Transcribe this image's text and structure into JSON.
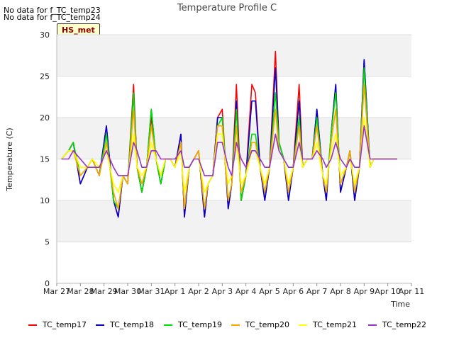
{
  "nodata_lines": [
    "No data for f_TC_temp23",
    "No data for f_TC_temp24"
  ],
  "badge": "HS_met",
  "chart_data": {
    "type": "line",
    "title": "Temperature Profile C",
    "xlabel": "Time",
    "ylabel": "Temperature (C)",
    "ylim": [
      0,
      30
    ],
    "yticks": [
      0,
      5,
      10,
      15,
      20,
      25,
      30
    ],
    "xlim": [
      0,
      15
    ],
    "xticks": [
      0,
      1,
      2,
      3,
      4,
      5,
      6,
      7,
      8,
      9,
      10,
      11,
      12,
      13,
      14,
      15
    ],
    "xtick_labels": [
      "Mar 27",
      "Mar 28",
      "Mar 29",
      "Mar 30",
      "Mar 31",
      "Apr 1",
      "Apr 2",
      "Apr 3",
      "Apr 4",
      "Apr 5",
      "Apr 6",
      "Apr 7",
      "Apr 8",
      "Apr 9",
      "Apr 10",
      "Apr 11"
    ],
    "grid": "horizontal bands",
    "legend_position": "bottom",
    "x": [
      0.2,
      0.5,
      0.7,
      1.0,
      1.3,
      1.5,
      1.8,
      2.1,
      2.4,
      2.6,
      2.8,
      3.0,
      3.25,
      3.4,
      3.6,
      3.8,
      4.0,
      4.2,
      4.4,
      4.6,
      4.8,
      5.0,
      5.25,
      5.4,
      5.6,
      5.8,
      6.0,
      6.25,
      6.4,
      6.6,
      6.8,
      7.0,
      7.25,
      7.4,
      7.6,
      7.8,
      8.0,
      8.25,
      8.4,
      8.6,
      8.8,
      9.0,
      9.25,
      9.4,
      9.6,
      9.8,
      10.0,
      10.25,
      10.4,
      10.6,
      10.8,
      11.0,
      11.25,
      11.4,
      11.6,
      11.8,
      12.0,
      12.25,
      12.4,
      12.6,
      12.8,
      13.0,
      13.25,
      13.4,
      13.6,
      13.8,
      14.0,
      14.25,
      14.4
    ],
    "series": [
      {
        "name": "TC_temp17",
        "color": "#ff0000",
        "values": [
          15,
          16,
          17,
          12,
          14,
          15,
          13,
          19,
          10,
          8,
          13,
          12,
          24,
          14,
          11,
          14,
          20,
          15,
          12,
          15,
          15,
          14,
          18,
          8,
          14,
          15,
          16,
          8,
          12,
          13,
          20,
          21,
          9,
          12,
          24,
          10,
          13,
          24,
          23,
          14,
          10,
          14,
          28,
          17,
          15,
          10,
          14,
          24,
          14,
          15,
          15,
          21,
          13,
          10,
          18,
          24,
          11,
          14,
          16,
          10,
          14,
          27,
          14,
          15,
          15,
          15,
          15,
          15,
          15
        ]
      },
      {
        "name": "TC_temp18",
        "color": "#0000cc",
        "values": [
          15,
          16,
          17,
          12,
          14,
          15,
          13,
          19,
          10,
          8,
          13,
          12,
          23,
          14,
          11,
          14,
          21,
          15,
          12,
          15,
          15,
          14,
          18,
          8,
          14,
          15,
          16,
          8,
          12,
          13,
          20,
          20,
          9,
          12,
          22,
          10,
          13,
          22,
          22,
          14,
          10,
          14,
          26,
          17,
          15,
          10,
          14,
          22,
          14,
          15,
          15,
          21,
          13,
          10,
          18,
          24,
          11,
          14,
          16,
          10,
          14,
          27,
          14,
          15,
          15,
          15,
          15,
          15,
          15
        ]
      },
      {
        "name": "TC_temp19",
        "color": "#00dd00",
        "values": [
          15,
          16,
          17,
          13,
          14,
          15,
          13,
          18,
          10,
          9,
          13,
          12,
          23,
          14,
          11,
          14,
          21,
          15,
          12,
          15,
          15,
          14,
          17,
          9,
          14,
          15,
          16,
          9,
          12,
          13,
          19,
          20,
          10,
          12,
          21,
          10,
          13,
          18,
          18,
          14,
          11,
          14,
          23,
          17,
          15,
          11,
          14,
          20,
          14,
          15,
          15,
          20,
          13,
          11,
          18,
          23,
          12,
          14,
          16,
          11,
          14,
          26,
          14,
          15,
          15,
          15,
          15,
          15,
          15
        ]
      },
      {
        "name": "TC_temp20",
        "color": "#ffa500",
        "values": [
          15,
          16,
          16,
          13,
          14,
          15,
          13,
          17,
          11,
          9,
          13,
          12,
          21,
          14,
          12,
          14,
          19,
          15,
          13,
          15,
          15,
          14,
          17,
          9,
          14,
          15,
          16,
          9,
          12,
          13,
          19,
          19,
          10,
          12,
          19,
          11,
          13,
          17,
          17,
          14,
          11,
          14,
          21,
          16,
          15,
          11,
          14,
          19,
          14,
          15,
          15,
          19,
          13,
          11,
          17,
          21,
          12,
          14,
          16,
          11,
          14,
          24,
          14,
          15,
          15,
          15,
          15,
          15,
          15
        ]
      },
      {
        "name": "TC_temp21",
        "color": "#ffff00",
        "values": [
          15,
          16,
          16,
          14,
          14,
          15,
          14,
          16,
          12,
          11,
          13,
          13,
          18,
          14,
          13,
          14,
          17,
          15,
          13,
          15,
          15,
          14,
          16,
          11,
          14,
          15,
          15,
          11,
          12,
          13,
          18,
          18,
          12,
          13,
          17,
          12,
          13,
          16,
          16,
          14,
          12,
          14,
          18,
          16,
          15,
          12,
          14,
          17,
          14,
          15,
          15,
          17,
          13,
          12,
          16,
          18,
          13,
          14,
          15,
          12,
          14,
          20,
          14,
          15,
          15,
          15,
          15,
          15,
          15
        ]
      },
      {
        "name": "TC_temp22",
        "color": "#9932cc",
        "values": [
          15,
          15,
          16,
          15,
          14,
          14,
          14,
          16,
          14,
          13,
          13,
          13,
          17,
          16,
          14,
          14,
          16,
          16,
          15,
          15,
          15,
          15,
          16,
          14,
          14,
          15,
          15,
          13,
          13,
          13,
          17,
          17,
          14,
          13,
          17,
          15,
          14,
          16,
          16,
          15,
          14,
          14,
          18,
          16,
          15,
          14,
          14,
          17,
          15,
          15,
          15,
          16,
          15,
          14,
          15,
          17,
          15,
          14,
          15,
          14,
          14,
          19,
          15,
          15,
          15,
          15,
          15,
          15,
          15
        ]
      }
    ]
  }
}
